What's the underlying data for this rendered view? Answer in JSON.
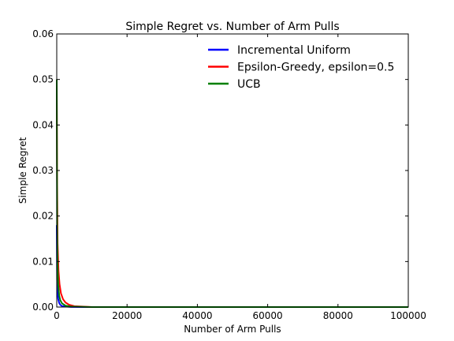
{
  "chart_data": {
    "type": "line",
    "title": "Simple Regret vs. Number of Arm Pulls",
    "xlabel": "Number of Arm Pulls",
    "ylabel": "Simple Regret",
    "xlim": [
      0,
      100000
    ],
    "ylim": [
      0,
      0.06
    ],
    "x_ticks": [
      0,
      20000,
      40000,
      60000,
      80000,
      100000
    ],
    "x_tick_labels": [
      "0",
      "20000",
      "40000",
      "60000",
      "80000",
      "100000"
    ],
    "y_ticks": [
      0,
      0.01,
      0.02,
      0.03,
      0.04,
      0.05,
      0.06
    ],
    "y_tick_labels": [
      "0.00",
      "0.01",
      "0.02",
      "0.03",
      "0.04",
      "0.05",
      "0.06"
    ],
    "grid": false,
    "legend": "top-right",
    "series": [
      {
        "name": "Incremental Uniform",
        "color": "#0000ff",
        "x": [
          0,
          100,
          200,
          400,
          700,
          1000,
          1500,
          2500,
          4000,
          10000,
          50000,
          100000
        ],
        "y": [
          0.018,
          0.006,
          0.0035,
          0.0018,
          0.0009,
          0.0005,
          0.0002,
          0.0001,
          3e-05,
          0,
          0,
          0
        ]
      },
      {
        "name": "Epsilon-Greedy, epsilon=0.5",
        "color": "#ff0000",
        "x": [
          0,
          100,
          250,
          500,
          800,
          1200,
          1800,
          2500,
          3500,
          5000,
          10000,
          50000,
          100000
        ],
        "y": [
          0.05,
          0.028,
          0.014,
          0.008,
          0.005,
          0.003,
          0.0017,
          0.001,
          0.0005,
          0.0002,
          0,
          0,
          0
        ]
      },
      {
        "name": "UCB",
        "color": "#008000",
        "x": [
          0,
          100,
          200,
          400,
          700,
          1000,
          1500,
          2500,
          4000,
          10000,
          50000,
          100000
        ],
        "y": [
          0.05,
          0.018,
          0.01,
          0.005,
          0.0025,
          0.0015,
          0.0008,
          0.0003,
          0.0001,
          0,
          0,
          0
        ]
      }
    ]
  }
}
